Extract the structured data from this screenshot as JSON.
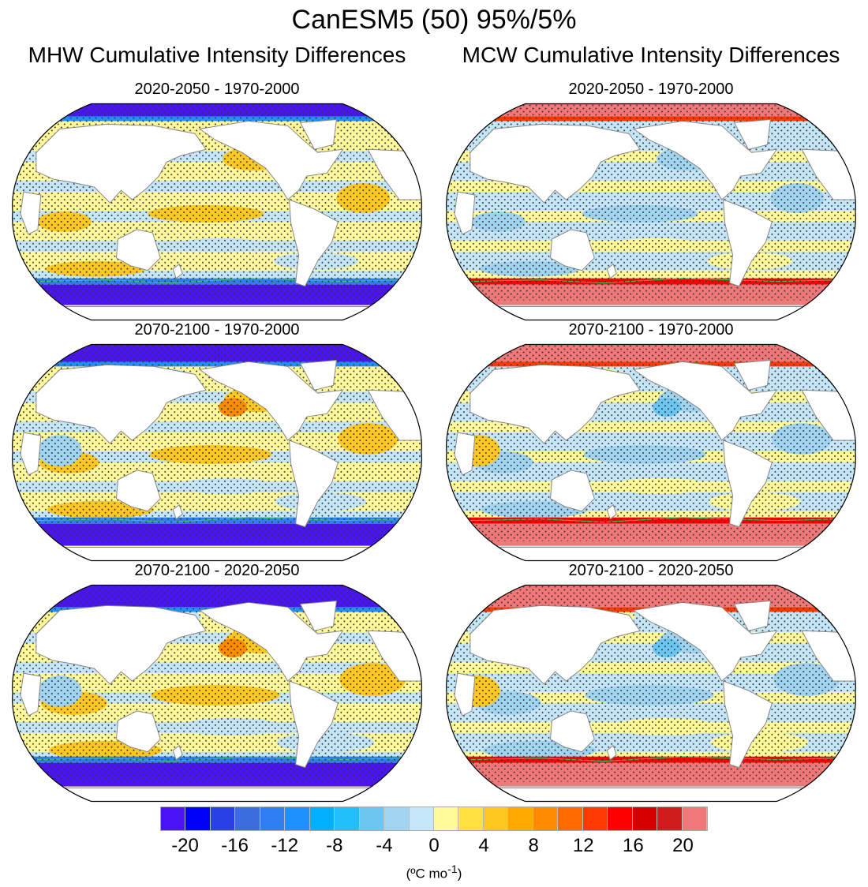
{
  "title": "CanESM5 (50) 95%/5%",
  "columns": [
    {
      "title": "MHW Cumulative Intensity Differences",
      "panels": [
        "2020-2050 - 1970-2000",
        "2070-2100 - 1970-2000",
        "2070-2100 - 2020-2050"
      ]
    },
    {
      "title": "MCW Cumulative Intensity Differences",
      "panels": [
        "2020-2050 - 1970-2000",
        "2070-2100 - 1970-2000",
        "2070-2100 - 2020-2050"
      ]
    }
  ],
  "colorbar": {
    "levels": [
      -20,
      -18,
      -16,
      -14,
      -12,
      -10,
      -8,
      -6,
      -4,
      -2,
      0,
      2,
      4,
      6,
      8,
      10,
      12,
      14,
      16,
      18,
      20
    ],
    "tick_labels": [
      "-20",
      "-16",
      "-12",
      "-8",
      "-4",
      "0",
      "4",
      "8",
      "12",
      "16",
      "20"
    ],
    "colors": [
      "#4a14f5",
      "#0000fa",
      "#2840e6",
      "#3c6ddc",
      "#2e7ff0",
      "#1e90ff",
      "#00b0ff",
      "#22c0fb",
      "#6cc6f0",
      "#a0d4f0",
      "#c4e6f8",
      "#fff99a",
      "#ffe040",
      "#ffc820",
      "#ffaa00",
      "#ff8c00",
      "#ff6a00",
      "#ff3a00",
      "#ff0000",
      "#d50000",
      "#d01c1c",
      "#f07878"
    ],
    "unit": "(ºC mo-1)"
  },
  "stippling": "dots mark significant differences",
  "contour_color": "#3cc878"
}
